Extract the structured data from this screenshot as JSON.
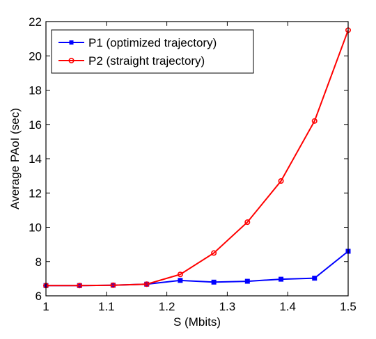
{
  "chart_data": {
    "type": "line",
    "title": "",
    "xlabel": "S (Mbits)",
    "ylabel": "Average PAoI (sec)",
    "xlim": [
      1,
      1.5
    ],
    "ylim": [
      6,
      22
    ],
    "x_ticks": [
      "1",
      "1.1",
      "1.2",
      "1.3",
      "1.4",
      "1.5"
    ],
    "y_ticks": [
      "6",
      "8",
      "10",
      "12",
      "14",
      "16",
      "18",
      "20",
      "22"
    ],
    "grid": false,
    "legend_position": "top-left",
    "x": [
      1.0,
      1.0556,
      1.1111,
      1.1667,
      1.2222,
      1.2778,
      1.3333,
      1.3889,
      1.4444,
      1.5
    ],
    "series": [
      {
        "name": "P1 (optimized trajectory)",
        "color": "#0000ff",
        "marker": "square",
        "values": [
          6.6,
          6.6,
          6.62,
          6.68,
          6.9,
          6.8,
          6.85,
          6.97,
          7.03,
          8.6
        ]
      },
      {
        "name": "P2 (straight trajectory)",
        "color": "#ff0000",
        "marker": "circle",
        "values": [
          6.6,
          6.6,
          6.62,
          6.68,
          7.25,
          8.5,
          10.3,
          12.7,
          16.2,
          21.5
        ]
      }
    ]
  }
}
